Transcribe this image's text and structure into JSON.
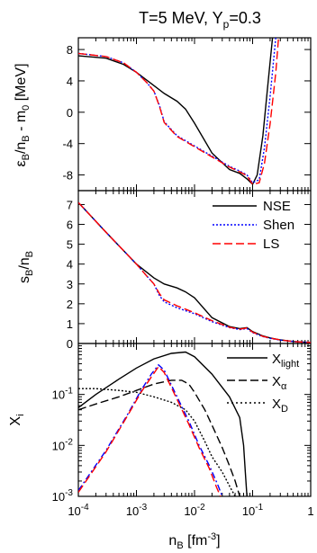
{
  "title": "T=5 MeV, Y",
  "title_sub": "p",
  "title_tail": "=0.3",
  "x_axis": {
    "label_main": "n",
    "label_sub": "B",
    "label_tail": " [fm",
    "label_sup": "-3",
    "label_end": "]",
    "scale": "log",
    "range": [
      0.0001,
      1
    ],
    "tick_base": "10",
    "tick_exponents": [
      "-4",
      "-3",
      "-2",
      "-1"
    ],
    "tick_last": "1"
  },
  "legend": {
    "placement": "top-right of middle panel",
    "entries": [
      {
        "name": "NSE",
        "color": "#000000",
        "dash": "solid"
      },
      {
        "name": "Shen",
        "color": "#0000ff",
        "dash": "dotted"
      },
      {
        "name": "LS",
        "color": "#ff0000",
        "dash": "dashed"
      }
    ]
  },
  "chart_data": [
    {
      "type": "line",
      "panel": "top",
      "ylabel": "εB/nB - m0 [MeV]",
      "ylabel_parts": {
        "eps": "ε",
        "sub1": "B",
        "mid": "/n",
        "sub2": "B",
        "tail": " - m",
        "sub3": "0",
        "end": " [MeV]"
      },
      "xscale": "log",
      "xlim": [
        0.0001,
        1
      ],
      "ylim": [
        -10,
        9.5
      ],
      "yticks": [
        -8,
        -4,
        0,
        4,
        8
      ],
      "ytick_labels": [
        "-8",
        "-4",
        "0",
        "4",
        "8"
      ],
      "series": [
        {
          "name": "NSE",
          "x": [
            0.0001,
            0.0003,
            0.0006,
            0.001,
            0.002,
            0.003,
            0.005,
            0.007,
            0.01,
            0.02,
            0.04,
            0.06,
            0.08,
            0.1,
            0.12,
            0.15,
            0.18,
            0.22
          ],
          "y": [
            7.2,
            6.9,
            6.1,
            5.1,
            3.4,
            2.4,
            1.4,
            0.4,
            -1.4,
            -5.2,
            -7.3,
            -7.8,
            -8.5,
            -9.2,
            -8.0,
            -3.0,
            3.0,
            9.5
          ]
        },
        {
          "name": "Shen",
          "x": [
            0.0001,
            0.0003,
            0.0006,
            0.001,
            0.0015,
            0.002,
            0.0025,
            0.003,
            0.005,
            0.01,
            0.02,
            0.04,
            0.06,
            0.08,
            0.1,
            0.13,
            0.16,
            0.2,
            0.25
          ],
          "y": [
            7.5,
            7.1,
            6.3,
            5.1,
            3.8,
            2.7,
            0.8,
            -1.2,
            -3.0,
            -4.3,
            -5.6,
            -6.9,
            -7.5,
            -8.0,
            -9.0,
            -8.6,
            -4.5,
            2.0,
            9.5
          ]
        },
        {
          "name": "LS",
          "x": [
            0.0001,
            0.0003,
            0.0006,
            0.001,
            0.0015,
            0.002,
            0.0025,
            0.003,
            0.005,
            0.01,
            0.02,
            0.04,
            0.06,
            0.08,
            0.1,
            0.13,
            0.16,
            0.2,
            0.25,
            0.28
          ],
          "y": [
            7.5,
            7.1,
            6.3,
            5.1,
            3.8,
            2.7,
            0.7,
            -1.3,
            -3.1,
            -4.4,
            -5.7,
            -7.0,
            -7.6,
            -8.1,
            -9.2,
            -9.0,
            -6.5,
            -1.5,
            5.0,
            9.5
          ]
        }
      ]
    },
    {
      "type": "line",
      "panel": "middle",
      "ylabel": "sB/nB",
      "ylabel_parts": {
        "main": "s",
        "sub1": "B",
        "mid": "/n",
        "sub2": "B"
      },
      "xscale": "log",
      "xlim": [
        0.0001,
        1
      ],
      "ylim": [
        0,
        7.7
      ],
      "yticks": [
        0,
        1,
        2,
        3,
        4,
        5,
        6,
        7
      ],
      "ytick_labels": [
        "0",
        "1",
        "2",
        "3",
        "4",
        "5",
        "6",
        "7"
      ],
      "series": [
        {
          "name": "NSE",
          "x": [
            0.0001,
            0.0003,
            0.001,
            0.002,
            0.003,
            0.005,
            0.007,
            0.01,
            0.02,
            0.04,
            0.06,
            0.08,
            0.1,
            0.15,
            0.2,
            0.3,
            0.5,
            1
          ],
          "y": [
            7.1,
            5.6,
            4.0,
            3.3,
            3.0,
            2.8,
            2.6,
            2.3,
            1.3,
            0.85,
            0.75,
            0.8,
            0.6,
            0.38,
            0.28,
            0.18,
            0.1,
            0.05
          ]
        },
        {
          "name": "Shen",
          "x": [
            0.0001,
            0.0003,
            0.001,
            0.0015,
            0.002,
            0.0025,
            0.003,
            0.005,
            0.01,
            0.02,
            0.04,
            0.06,
            0.08,
            0.1,
            0.15,
            0.2,
            0.3,
            0.5,
            1
          ],
          "y": [
            7.1,
            5.6,
            4.0,
            3.4,
            3.0,
            2.4,
            2.1,
            1.8,
            1.5,
            1.1,
            0.8,
            0.7,
            0.75,
            0.55,
            0.35,
            0.26,
            0.17,
            0.1,
            0.05
          ]
        },
        {
          "name": "LS",
          "x": [
            0.0001,
            0.0003,
            0.001,
            0.0015,
            0.002,
            0.0025,
            0.003,
            0.005,
            0.01,
            0.02,
            0.04,
            0.06,
            0.08,
            0.1,
            0.15,
            0.2,
            0.3,
            0.5,
            1
          ],
          "y": [
            7.1,
            5.6,
            4.0,
            3.4,
            3.0,
            2.5,
            2.2,
            1.9,
            1.55,
            1.15,
            0.82,
            0.72,
            0.78,
            0.57,
            0.36,
            0.27,
            0.18,
            0.1,
            0.05
          ]
        }
      ]
    },
    {
      "type": "line",
      "panel": "bottom",
      "ylabel": "Xi",
      "ylabel_parts": {
        "main": "X",
        "sub": "i"
      },
      "xscale": "log",
      "yscale": "log",
      "xlim": [
        0.0001,
        1
      ],
      "ylim": [
        0.001,
        1
      ],
      "ytick_exponents": [
        "-3",
        "-2",
        "-1"
      ],
      "series": [
        {
          "name": "X light",
          "label_main": "X",
          "label_sub": "light",
          "color": "#000000",
          "dash": "solid",
          "x": [
            0.0001,
            0.0002,
            0.0005,
            0.001,
            0.002,
            0.004,
            0.007,
            0.01,
            0.02,
            0.04,
            0.06,
            0.07,
            0.075,
            0.08
          ],
          "y": [
            0.055,
            0.1,
            0.2,
            0.33,
            0.5,
            0.64,
            0.68,
            0.55,
            0.25,
            0.09,
            0.035,
            0.01,
            0.003,
            0.001
          ]
        },
        {
          "name": "X alpha",
          "label_main": "X",
          "label_sub": "α",
          "color": "#000000",
          "dash": "longdash",
          "x": [
            0.0001,
            0.0002,
            0.0005,
            0.001,
            0.002,
            0.004,
            0.006,
            0.008,
            0.01,
            0.015,
            0.02,
            0.03,
            0.04,
            0.05,
            0.06
          ],
          "y": [
            0.05,
            0.065,
            0.09,
            0.12,
            0.16,
            0.19,
            0.19,
            0.16,
            0.11,
            0.05,
            0.025,
            0.009,
            0.004,
            0.002,
            0.001
          ]
        },
        {
          "name": "X D",
          "label_main": "X",
          "label_sub": "D",
          "color": "#000000",
          "dash": "dotted",
          "x": [
            0.0001,
            0.0002,
            0.0005,
            0.001,
            0.002,
            0.004,
            0.007,
            0.01,
            0.015,
            0.02,
            0.03,
            0.04,
            0.05
          ],
          "y": [
            0.13,
            0.13,
            0.12,
            0.11,
            0.09,
            0.07,
            0.05,
            0.03,
            0.012,
            0.006,
            0.003,
            0.0016,
            0.001
          ]
        },
        {
          "name": "Shen X alpha",
          "color": "#0000ff",
          "dash": "dashdot",
          "x": [
            0.0001,
            0.0003,
            0.0007,
            0.0012,
            0.0018,
            0.0024,
            0.003,
            0.005,
            0.008,
            0.012,
            0.018,
            0.025,
            0.03
          ],
          "y": [
            0.0013,
            0.008,
            0.04,
            0.12,
            0.25,
            0.38,
            0.3,
            0.09,
            0.03,
            0.01,
            0.004,
            0.0017,
            0.001
          ]
        },
        {
          "name": "LS X alpha",
          "color": "#ff0000",
          "dash": "dashed",
          "x": [
            0.0001,
            0.0003,
            0.0007,
            0.0012,
            0.0018,
            0.0024,
            0.003,
            0.005,
            0.008,
            0.012,
            0.018,
            0.024,
            0.028
          ],
          "y": [
            0.0012,
            0.0075,
            0.038,
            0.11,
            0.22,
            0.35,
            0.27,
            0.08,
            0.026,
            0.009,
            0.0035,
            0.0015,
            0.001
          ]
        }
      ]
    }
  ]
}
